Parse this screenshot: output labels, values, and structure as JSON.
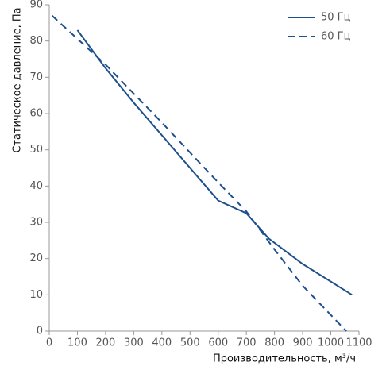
{
  "chart_data": {
    "type": "line",
    "xlabel": "Производительность, м³/ч",
    "ylabel": "Статическое давление, Па",
    "xlim": [
      0,
      1100
    ],
    "xticks": [
      0,
      100,
      200,
      300,
      400,
      500,
      600,
      700,
      800,
      900,
      1000,
      1100
    ],
    "ylim": [
      0,
      90
    ],
    "yticks": [
      0,
      10,
      20,
      30,
      40,
      50,
      60,
      70,
      80,
      90
    ],
    "legend": "top-right",
    "series": [
      {
        "name": "50 Гц",
        "color": "#1d4f8c",
        "dash": false,
        "x": [
          100,
          200,
          300,
          400,
          500,
          600,
          700,
          780,
          900,
          1075
        ],
        "values": [
          83,
          72.5,
          63,
          54,
          45,
          36,
          32.5,
          25.5,
          18.5,
          10
        ]
      },
      {
        "name": "60 Гц",
        "color": "#1d4f8c",
        "dash": true,
        "x": [
          10,
          200,
          400,
          600,
          700,
          800,
          900,
          1055
        ],
        "values": [
          87,
          73.5,
          57.5,
          41,
          33,
          22.5,
          12.5,
          0
        ]
      }
    ]
  }
}
